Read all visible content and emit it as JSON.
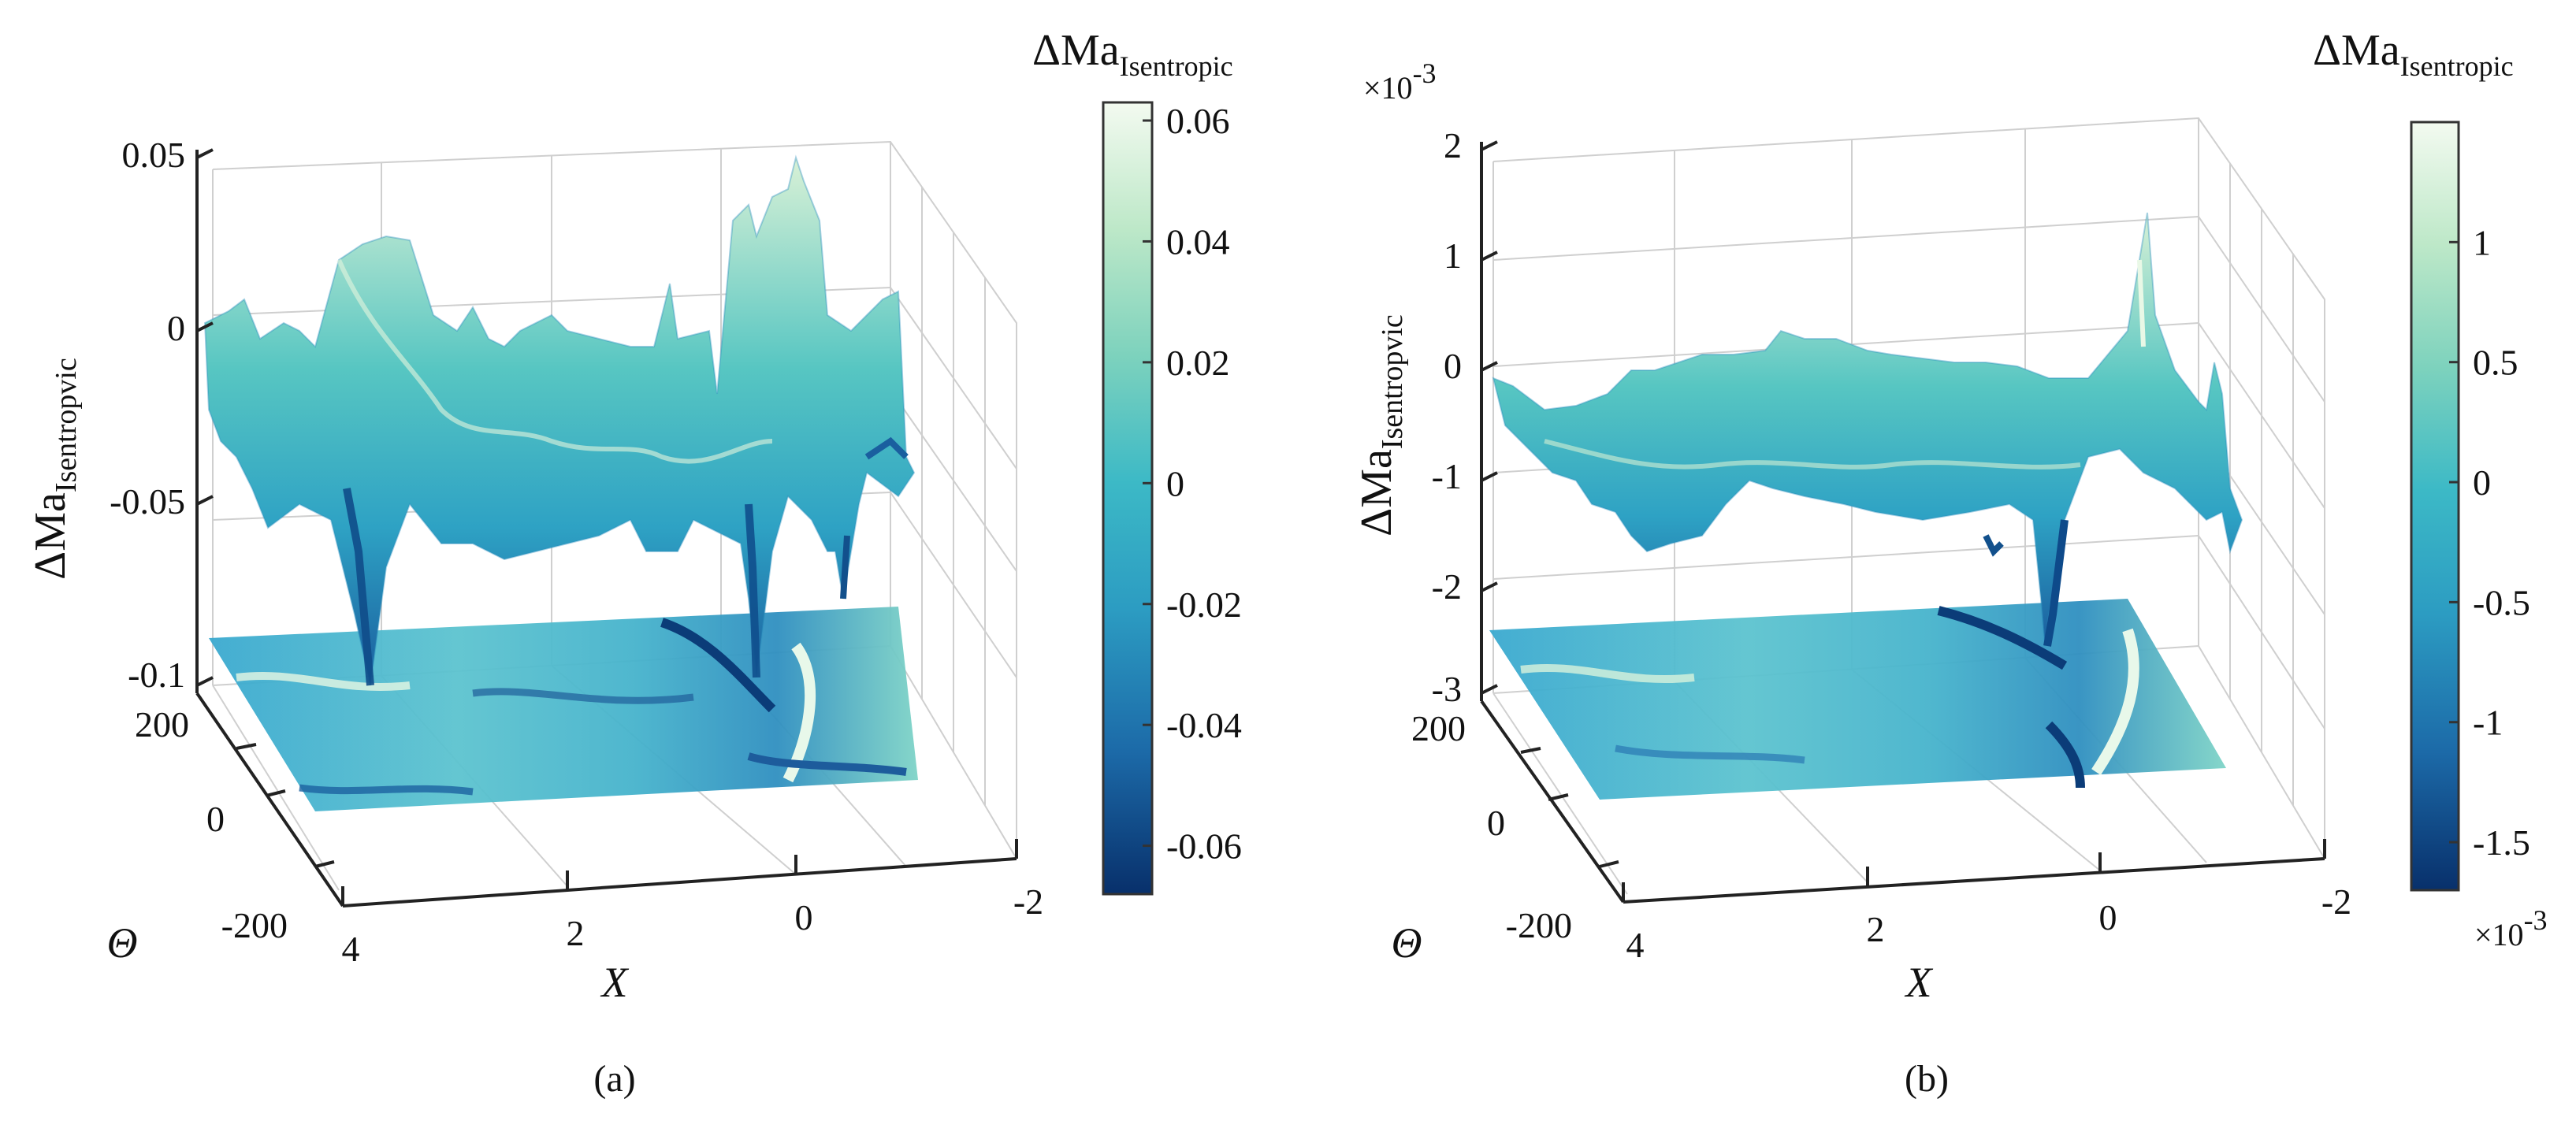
{
  "figure_captions": [
    "(a)",
    "(b)"
  ],
  "chart_data": [
    {
      "type": "surface",
      "id": "a",
      "caption": "(a)",
      "xlabel": "X",
      "ylabel": "Θ",
      "zlabel": {
        "base": "ΔMa",
        "sub": "Isentropvic"
      },
      "x_ticks": [
        "4",
        "2",
        "0",
        "-2"
      ],
      "y_ticks": [
        "200",
        "0",
        "-200"
      ],
      "z_ticks": [
        "0.05",
        "0",
        "-0.05",
        "-0.1"
      ],
      "xlim": [
        -2,
        4
      ],
      "ylim": [
        -200,
        200
      ],
      "zlim": [
        -0.1,
        0.05
      ],
      "colorbar": {
        "title": {
          "base": "ΔMa",
          "sub": "Isentropic"
        },
        "ticks": [
          "0.06",
          "0.04",
          "0.02",
          "0",
          "-0.02",
          "-0.04",
          "-0.06"
        ],
        "range": [
          -0.068,
          0.063
        ],
        "colors": [
          "#08306b",
          "#1c6aa8",
          "#2c9cc2",
          "#3cb9c6",
          "#7dd2bd",
          "#bde8c8",
          "#f3faf0"
        ]
      },
      "surface_profile": {
        "x": [
          4.0,
          3.6,
          3.2,
          2.8,
          2.4,
          2.0,
          1.6,
          1.2,
          0.8,
          0.4,
          0.0,
          -0.4,
          -0.8,
          -1.2
        ],
        "z_mean": [
          0.0,
          -0.02,
          0.0,
          0.01,
          0.005,
          -0.01,
          -0.02,
          -0.03,
          -0.02,
          -0.01,
          -0.02,
          0.03,
          0.04,
          -0.03
        ],
        "z_min": [
          -0.04,
          -0.1,
          -0.03,
          -0.04,
          -0.05,
          -0.06,
          -0.07,
          -0.07,
          -0.06,
          -0.05,
          -0.1,
          -0.08,
          -0.1,
          -0.09
        ],
        "z_max": [
          0.02,
          0.01,
          0.04,
          0.04,
          0.03,
          0.01,
          0.0,
          -0.01,
          0.0,
          0.0,
          0.02,
          0.06,
          0.06,
          0.0
        ]
      }
    },
    {
      "type": "surface",
      "id": "b",
      "caption": "(b)",
      "xlabel": "X",
      "ylabel": "Θ",
      "zlabel": {
        "base": "ΔMa",
        "sub": "Isentropvic"
      },
      "z_exponent": "×10",
      "z_exponent_power": "-3",
      "x_ticks": [
        "4",
        "2",
        "0",
        "-2"
      ],
      "y_ticks": [
        "200",
        "0",
        "-200"
      ],
      "z_ticks": [
        "2",
        "1",
        "0",
        "-1",
        "-2",
        "-3"
      ],
      "xlim": [
        -2,
        4
      ],
      "ylim": [
        -200,
        200
      ],
      "zlim": [
        -3,
        2
      ],
      "colorbar": {
        "title": {
          "base": "ΔMa",
          "sub": "Isentropic"
        },
        "ticks": [
          "1",
          "0.5",
          "0",
          "-0.5",
          "-1",
          "-1.5"
        ],
        "exponent": "×10",
        "exponent_power": "-3",
        "range": [
          -1.7,
          1.5
        ],
        "colors": [
          "#08306b",
          "#1c6aa8",
          "#2c9cc2",
          "#3cb9c6",
          "#7dd2bd",
          "#bde8c8",
          "#f3faf0"
        ]
      },
      "surface_profile": {
        "x": [
          4.0,
          3.6,
          3.2,
          2.8,
          2.4,
          2.0,
          1.6,
          1.2,
          0.8,
          0.4,
          0.0,
          -0.4,
          -0.8,
          -1.2
        ],
        "z_mean": [
          -0.3,
          -0.5,
          -0.6,
          -0.3,
          0.0,
          -0.4,
          -0.6,
          -0.7,
          -0.6,
          -0.5,
          -0.4,
          -0.3,
          0.0,
          -0.8
        ],
        "z_min": [
          -1.0,
          -1.2,
          -1.4,
          -1.2,
          -1.0,
          -1.3,
          -1.5,
          -1.6,
          -1.5,
          -1.4,
          -3.0,
          -1.4,
          -0.9,
          -1.5
        ],
        "z_max": [
          0.0,
          -0.2,
          0.0,
          0.2,
          0.3,
          0.0,
          -0.2,
          -0.3,
          -0.2,
          0.0,
          0.2,
          0.5,
          1.2,
          0.0
        ]
      }
    }
  ]
}
